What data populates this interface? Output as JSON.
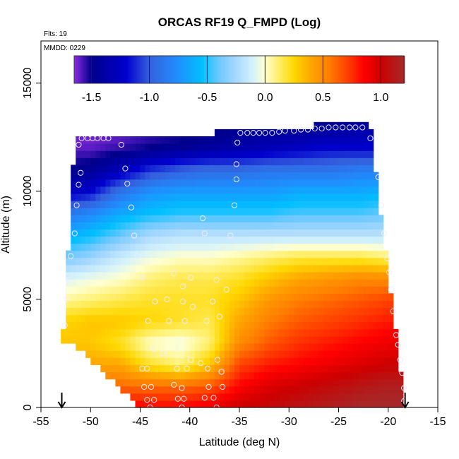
{
  "chart_data": {
    "type": "heatmap",
    "title": "ORCAS RF19 Q_FMPD (Log)",
    "flights_label": "Flts: 19",
    "date_label": "MMDD: 0229",
    "xlabel": "Latitude (deg N)",
    "ylabel": "Altitude (m)",
    "xlim": [
      -55,
      -15
    ],
    "ylim": [
      0,
      16950
    ],
    "x_ticks": [
      -55,
      -50,
      -45,
      -40,
      -35,
      -30,
      -25,
      -20,
      -15
    ],
    "x_tick_labels": [
      "-55",
      "-50",
      "-45",
      "-40",
      "-35",
      "-30",
      "-25",
      "-20",
      "-15"
    ],
    "y_ticks": [
      0,
      5000,
      10000,
      15000
    ],
    "y_tick_labels": [
      "0",
      "5000",
      "10000",
      "15000"
    ],
    "colorbar": {
      "range": [
        -1.65,
        1.2
      ],
      "ticks": [
        -1.5,
        -1.0,
        -0.5,
        0.0,
        0.5,
        1.0
      ],
      "tick_labels": [
        "-1.5",
        "-1.0",
        "-0.5",
        "0.0",
        "0.5",
        "1.0"
      ],
      "stops": [
        [
          -1.65,
          "#8a2be2"
        ],
        [
          -1.5,
          "#00008b"
        ],
        [
          -1.2,
          "#0000cd"
        ],
        [
          -1.0,
          "#3560dd"
        ],
        [
          -0.75,
          "#1e90ff"
        ],
        [
          -0.55,
          "#00bfff"
        ],
        [
          -0.4,
          "#6cc8ff"
        ],
        [
          -0.25,
          "#a8d8ff"
        ],
        [
          -0.1,
          "#d6f3fa"
        ],
        [
          0.0,
          "#ffffd0"
        ],
        [
          0.1,
          "#fff176"
        ],
        [
          0.25,
          "#ffd700"
        ],
        [
          0.4,
          "#ffa500"
        ],
        [
          0.55,
          "#ff7f00"
        ],
        [
          0.75,
          "#ff3000"
        ],
        [
          0.85,
          "#ff0000"
        ],
        [
          1.0,
          "#cc0000"
        ],
        [
          1.2,
          "#a52a2a"
        ]
      ]
    },
    "grid": {
      "lat": [
        -53,
        -50,
        -47,
        -44,
        -41,
        -38,
        -35,
        -32,
        -29,
        -26,
        -23,
        -20,
        -18
      ],
      "alt": [
        0,
        1000,
        2000,
        3000,
        4000,
        5000,
        6000,
        7000,
        8000,
        9000,
        10000,
        11000,
        12000,
        13000
      ],
      "values": [
        [
          0.9,
          0.9,
          0.9,
          0.85,
          0.85,
          0.9,
          1.0,
          1.05,
          1.1,
          1.15,
          1.2,
          1.2,
          1.2
        ],
        [
          0.6,
          0.6,
          0.6,
          0.6,
          0.6,
          0.65,
          0.85,
          0.95,
          1.0,
          1.05,
          1.1,
          1.15,
          1.15
        ],
        [
          0.4,
          0.4,
          0.4,
          0.2,
          0.1,
          0.3,
          0.7,
          0.8,
          0.85,
          0.9,
          0.95,
          1.0,
          1.0
        ],
        [
          0.3,
          0.3,
          0.2,
          0.0,
          -0.05,
          0.1,
          0.5,
          0.65,
          0.75,
          0.8,
          0.85,
          0.9,
          0.9
        ],
        [
          0.25,
          0.3,
          0.3,
          0.25,
          0.2,
          0.15,
          0.4,
          0.55,
          0.65,
          0.7,
          0.75,
          0.8,
          0.8
        ],
        [
          0.05,
          0.1,
          0.15,
          0.2,
          0.2,
          0.2,
          0.3,
          0.45,
          0.55,
          0.6,
          0.65,
          0.7,
          0.7
        ],
        [
          -0.1,
          -0.05,
          0.0,
          0.1,
          0.15,
          0.15,
          0.2,
          0.3,
          0.4,
          0.45,
          0.5,
          0.5,
          0.5
        ],
        [
          -0.4,
          -0.3,
          -0.15,
          -0.05,
          0.0,
          0.0,
          0.05,
          0.1,
          0.15,
          0.15,
          0.15,
          0.1,
          0.1
        ],
        [
          -0.65,
          -0.55,
          -0.4,
          -0.25,
          -0.2,
          -0.2,
          -0.2,
          -0.2,
          -0.2,
          -0.2,
          -0.2,
          -0.2,
          -0.2
        ],
        [
          -0.9,
          -0.8,
          -0.65,
          -0.55,
          -0.5,
          -0.5,
          -0.5,
          -0.5,
          -0.45,
          -0.45,
          -0.45,
          -0.4,
          -0.4
        ],
        [
          -1.3,
          -1.2,
          -0.9,
          -0.75,
          -0.7,
          -0.7,
          -0.7,
          -0.7,
          -0.65,
          -0.65,
          -0.65,
          -0.6,
          -0.6
        ],
        [
          -1.5,
          -1.45,
          -1.3,
          -1.1,
          -1.0,
          -0.95,
          -0.95,
          -0.9,
          -0.9,
          -0.9,
          -0.85,
          -0.85,
          -0.85
        ],
        [
          -1.6,
          -1.6,
          -1.55,
          -1.5,
          -1.45,
          -1.4,
          -1.35,
          -1.3,
          -1.25,
          -1.2,
          -1.2,
          -1.2,
          -1.2
        ],
        [
          -1.65,
          -1.65,
          -1.65,
          -1.6,
          -1.6,
          -1.55,
          -1.5,
          -1.45,
          -1.45,
          -1.45,
          -1.4,
          -1.4,
          -1.4
        ]
      ]
    },
    "observations": [
      [
        -50.9,
        12450
      ],
      [
        -50.3,
        12450
      ],
      [
        -49.8,
        12450
      ],
      [
        -49.3,
        12450
      ],
      [
        -48.7,
        12450
      ],
      [
        -48.2,
        12450
      ],
      [
        -46.9,
        12150
      ],
      [
        -51.2,
        12150
      ],
      [
        -34.9,
        12700
      ],
      [
        -34.2,
        12700
      ],
      [
        -33.6,
        12700
      ],
      [
        -33.0,
        12700
      ],
      [
        -32.4,
        12700
      ],
      [
        -31.7,
        12700
      ],
      [
        -31.0,
        12750
      ],
      [
        -30.4,
        12800
      ],
      [
        -29.5,
        12800
      ],
      [
        -28.8,
        12850
      ],
      [
        -28.1,
        12850
      ],
      [
        -27.4,
        12900
      ],
      [
        -26.7,
        12900
      ],
      [
        -26.0,
        12950
      ],
      [
        -25.3,
        12950
      ],
      [
        -24.6,
        12950
      ],
      [
        -23.9,
        12950
      ],
      [
        -23.3,
        12950
      ],
      [
        -22.6,
        12950
      ],
      [
        -21.8,
        12450
      ],
      [
        -35.2,
        12250
      ],
      [
        -35.3,
        11250
      ],
      [
        -35.3,
        10550
      ],
      [
        -35.5,
        9350
      ],
      [
        -46.5,
        11050
      ],
      [
        -46.3,
        10350
      ],
      [
        -45.9,
        9250
      ],
      [
        -45.6,
        7950
      ],
      [
        -45.3,
        7000
      ],
      [
        -38.7,
        8750
      ],
      [
        -38.5,
        8050
      ],
      [
        -35.9,
        7950
      ],
      [
        -51.0,
        10850
      ],
      [
        -51.2,
        10300
      ],
      [
        -51.4,
        9350
      ],
      [
        -51.6,
        8050
      ],
      [
        -52.0,
        7000
      ],
      [
        -52.2,
        5900
      ],
      [
        -52.4,
        5000
      ],
      [
        -52.6,
        3800
      ],
      [
        -21.0,
        10650
      ],
      [
        -20.7,
        9350
      ],
      [
        -20.4,
        8050
      ],
      [
        -20.1,
        6900
      ],
      [
        -19.9,
        6250
      ],
      [
        -19.7,
        5450
      ],
      [
        -19.5,
        4450
      ],
      [
        -19.2,
        3350
      ],
      [
        -19.0,
        2900
      ],
      [
        -18.8,
        2200
      ],
      [
        -18.6,
        1600
      ],
      [
        -18.4,
        900
      ],
      [
        -18.4,
        300
      ],
      [
        -44.8,
        6000
      ],
      [
        -41.6,
        6200
      ],
      [
        -40.7,
        5600
      ],
      [
        -39.9,
        6000
      ],
      [
        -37.3,
        5900
      ],
      [
        -36.3,
        5450
      ],
      [
        -37.7,
        4900
      ],
      [
        -43.5,
        4900
      ],
      [
        -42.3,
        5000
      ],
      [
        -40.7,
        4900
      ],
      [
        -39.7,
        4650
      ],
      [
        -44.2,
        4000
      ],
      [
        -42.1,
        4000
      ],
      [
        -40.5,
        4000
      ],
      [
        -38.3,
        4000
      ],
      [
        -37.0,
        4200
      ],
      [
        -43.6,
        2700
      ],
      [
        -42.7,
        2500
      ],
      [
        -39.9,
        2200
      ],
      [
        -38.9,
        2050
      ],
      [
        -37.2,
        2200
      ],
      [
        -44.8,
        1800
      ],
      [
        -44.3,
        1800
      ],
      [
        -41.3,
        1800
      ],
      [
        -40.3,
        1800
      ],
      [
        -38.2,
        1800
      ],
      [
        -36.8,
        1650
      ],
      [
        -44.6,
        950
      ],
      [
        -43.9,
        950
      ],
      [
        -41.6,
        1050
      ],
      [
        -40.8,
        900
      ],
      [
        -38.1,
        950
      ],
      [
        -36.7,
        950
      ],
      [
        -44.3,
        350
      ],
      [
        -43.6,
        350
      ],
      [
        -41.2,
        400
      ],
      [
        -40.6,
        400
      ],
      [
        -38.5,
        450
      ],
      [
        -37.6,
        450
      ],
      [
        -44.0,
        0
      ],
      [
        -40.8,
        0
      ],
      [
        -37.3,
        0
      ]
    ],
    "arrows_at_lat": [
      -52.9,
      -18.3
    ]
  }
}
